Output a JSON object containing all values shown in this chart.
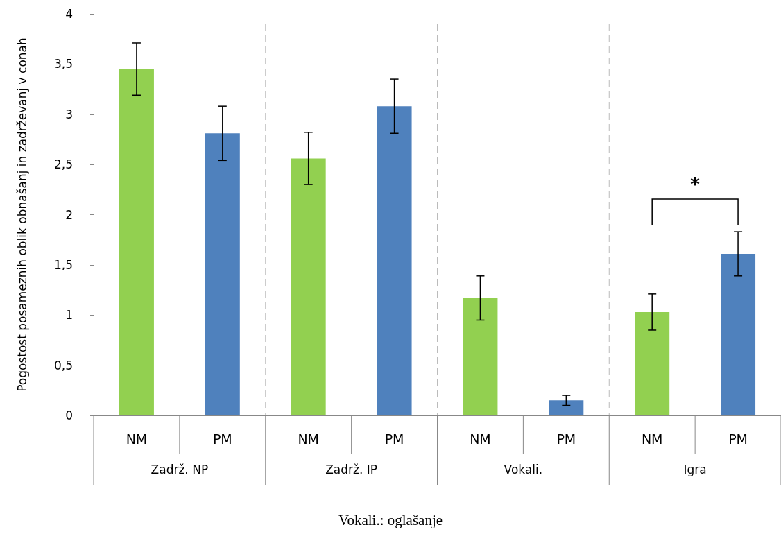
{
  "chart_data": {
    "type": "bar",
    "ylabel": "Pogostost posameznih oblik obnašanj in zadrževanj v conah",
    "categories": [
      "NM",
      "PM",
      "NM",
      "PM",
      "NM",
      "PM",
      "NM",
      "PM"
    ],
    "values": [
      3.45,
      2.81,
      2.56,
      3.08,
      1.17,
      0.15,
      1.03,
      1.61
    ],
    "colors": [
      "#92d050",
      "#4f81bd",
      "#92d050",
      "#4f81bd",
      "#92d050",
      "#4f81bd",
      "#92d050",
      "#4f81bd"
    ],
    "errors": [
      0.26,
      0.27,
      0.26,
      0.27,
      0.22,
      0.05,
      0.18,
      0.22
    ],
    "ylim": [
      0,
      4
    ],
    "yticks": [
      0,
      {
        "value": 0.5,
        "label": "0,5"
      },
      1,
      {
        "value": 1.5,
        "label": "1,5"
      },
      2,
      {
        "value": 2.5,
        "label": "2,5"
      },
      3,
      {
        "value": 3.5,
        "label": "3,5"
      },
      4
    ],
    "grid": false,
    "annotations": [
      "Zadrž. NP",
      "Zadrž. IP",
      "Vokali.",
      "Igra",
      "*",
      "Vokali.: oglašanje"
    ]
  }
}
